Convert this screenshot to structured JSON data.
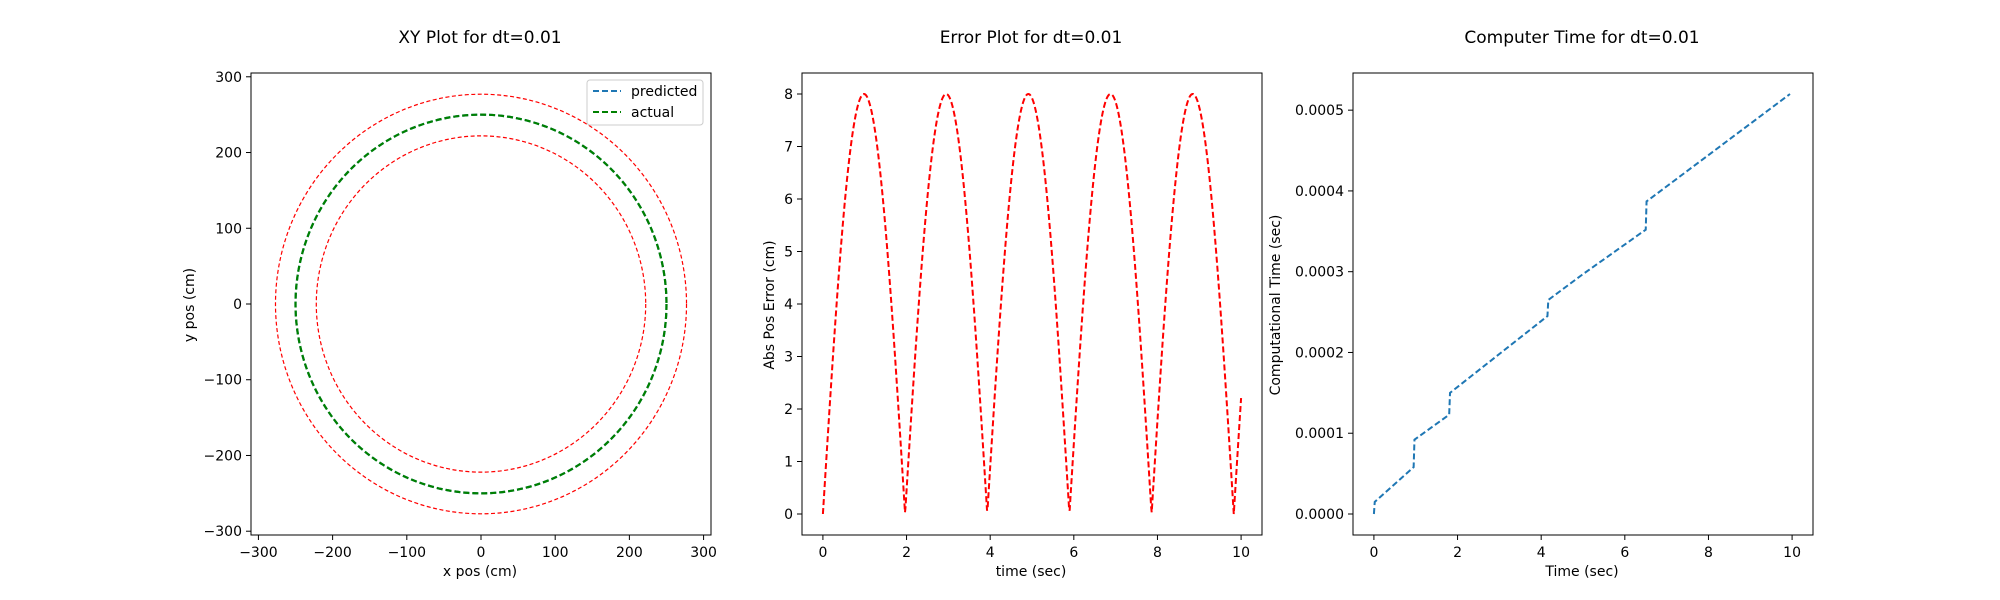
{
  "chart_data": [
    {
      "type": "line",
      "title": "XY Plot for dt=0.01",
      "xlabel": "x pos (cm)",
      "ylabel": "y pos (cm)",
      "xlim": [
        -310,
        310
      ],
      "ylim": [
        -305,
        305
      ],
      "xticks": [
        -300,
        -200,
        -100,
        0,
        100,
        200,
        300
      ],
      "yticks": [
        -300,
        -200,
        -100,
        0,
        100,
        200,
        300
      ],
      "grid": false,
      "legend_position": "top-right",
      "series": [
        {
          "name": "predicted",
          "kind": "circle",
          "radius": 250,
          "color": "#1f77b4",
          "style": "dashed"
        },
        {
          "name": "actual",
          "kind": "circle",
          "radius": 250,
          "color": "#008000",
          "style": "dashed"
        },
        {
          "kind": "circle",
          "radius": 277,
          "color": "#ff0000",
          "style": "dashed"
        },
        {
          "kind": "circle",
          "radius": 222,
          "color": "#ff0000",
          "style": "dashed"
        }
      ]
    },
    {
      "type": "line",
      "title": "Error Plot for dt=0.01",
      "xlabel": "time (sec)",
      "ylabel": "Abs Pos Error (cm)",
      "xlim": [
        -0.5,
        10.5
      ],
      "ylim": [
        -0.4,
        8.4
      ],
      "xticks": [
        0,
        2,
        4,
        6,
        8,
        10
      ],
      "yticks": [
        0,
        1,
        2,
        3,
        4,
        5,
        6,
        7,
        8
      ],
      "grid": false,
      "series": [
        {
          "color": "#ff0000",
          "style": "dashed",
          "amplitude": 8,
          "period": 3.93,
          "t_start": 0,
          "t_end": 10
        }
      ]
    },
    {
      "type": "line",
      "title": "Computer Time for dt=0.01",
      "xlabel": "Time (sec)",
      "ylabel": "Computational Time (sec)",
      "xlim": [
        -0.5,
        10.5
      ],
      "ylim": [
        -2.6e-05,
        0.000546
      ],
      "xticks": [
        0,
        2,
        4,
        6,
        8,
        10
      ],
      "yticks": [
        0.0,
        0.0001,
        0.0002,
        0.0003,
        0.0004,
        0.0005
      ],
      "ytick_labels": [
        "0.0000",
        "0.0001",
        "0.0002",
        "0.0003",
        "0.0004",
        "0.0005"
      ],
      "grid": false,
      "series": [
        {
          "color": "#1f77b4",
          "style": "dashed",
          "x": [
            0,
            0.02,
            0.95,
            0.97,
            1.8,
            1.82,
            4.15,
            4.17,
            5.0,
            6.5,
            6.52,
            9.95
          ],
          "y": [
            0,
            1.5e-05,
            5.8e-05,
            9.2e-05,
            0.000123,
            0.00015,
            0.000245,
            0.000265,
            0.000297,
            0.000352,
            0.000387,
            0.00052
          ]
        }
      ]
    }
  ]
}
